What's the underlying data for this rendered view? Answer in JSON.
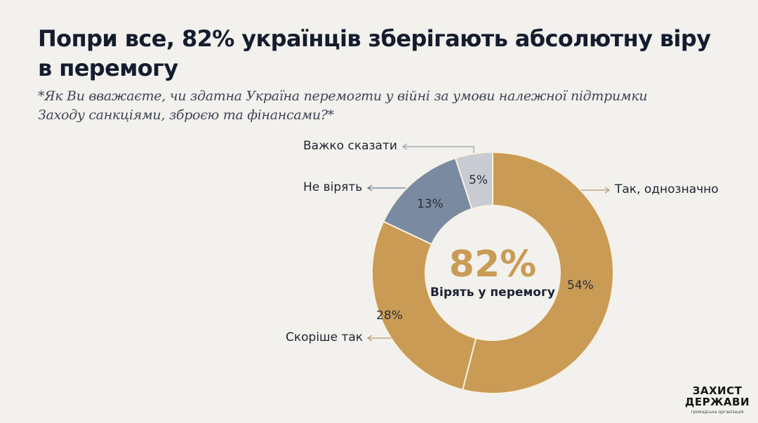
{
  "header": {
    "title": "Попри все, 82% українців зберігають абсолютну віру в перемогу",
    "subtitle": "*Як Ви вважаєте, чи здатна Україна перемогти у війні за умови належної підтримки Заходу санкціями, зброєю та фінансами?*"
  },
  "center": {
    "value": "82%",
    "label": "Вірять у перемогу"
  },
  "segments": [
    {
      "name": "Так, однозначно",
      "value": 54,
      "label": "54%",
      "color": "#c99b55"
    },
    {
      "name": "Скоріше так",
      "value": 28,
      "label": "28%",
      "color": "#c99b55"
    },
    {
      "name": "Не вірять",
      "value": 13,
      "label": "13%",
      "color": "#7a8aa0"
    },
    {
      "name": "Важко сказати",
      "value": 5,
      "label": "5%",
      "color": "#c9cbd3"
    }
  ],
  "callouts": {
    "yes_definitely": "Так, однозначно",
    "rather_yes": "Скоріше так",
    "dont_believe": "Не вірять",
    "hard_to_say": "Важко сказати"
  },
  "logo": {
    "line1": "ЗАХИСТ",
    "line2": "ДЕРЖАВИ",
    "line3": "громадська організація"
  },
  "colors": {
    "background": "#f2f1ed",
    "gold": "#c99b55",
    "slate": "#7a8aa0",
    "light_gray": "#c9cbd3",
    "title": "#141c2e"
  },
  "chart_data": {
    "type": "pie",
    "subtype": "donut",
    "title": "Попри все, 82% українців зберігають абсолютну віру в перемогу",
    "subtitle": "*Як Ви вважаєте, чи здатна Україна перемогти у війні за умови належної підтримки Заходу санкціями, зброєю та фінансами?*",
    "categories": [
      "Так, однозначно",
      "Скоріше так",
      "Не вірять",
      "Важко сказати"
    ],
    "values": [
      54,
      28,
      13,
      5
    ],
    "unit": "%",
    "center_annotation": {
      "value": "82%",
      "text": "Вірять у перемогу"
    },
    "start_angle": "12 o'clock, clockwise",
    "legend": "callout labels with arrows"
  }
}
